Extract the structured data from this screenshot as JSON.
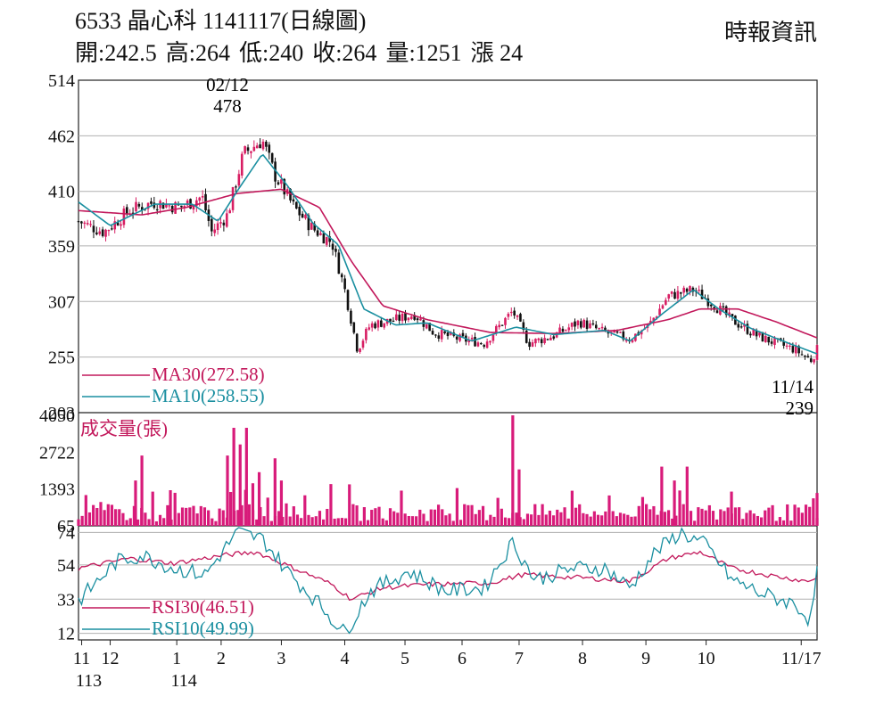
{
  "header": {
    "title": "6533 晶心科 1141117(日線圖)",
    "source": "時報資訊",
    "quote": {
      "open": "開:242.5",
      "high": "高:264",
      "low": "低:240",
      "close": "收:264",
      "volume": "量:1251",
      "change": "漲 24"
    }
  },
  "colors": {
    "up": "#d81e63",
    "down": "#111111",
    "ma30": "#c2185b",
    "ma10": "#1a8fa0",
    "volume": "#d81b7a",
    "grid": "#b0b0b0"
  },
  "chart_data": [
    {
      "type": "candlestick",
      "panel": "price",
      "y_ticks": [
        "514",
        "462",
        "410",
        "359",
        "307",
        "255",
        "203"
      ],
      "ylim": [
        203,
        514
      ],
      "annotations": [
        {
          "label_date": "02/12",
          "label_value": "478",
          "x_month_pos": 2.35,
          "value": 478
        },
        {
          "label_date": "11/14",
          "label_value": "239",
          "x_month_pos": 12.95,
          "value": 239
        }
      ],
      "legend": [
        {
          "label": "MA30(272.58)",
          "color": "#c2185b"
        },
        {
          "label": "MA10(258.55)",
          "color": "#1a8fa0"
        }
      ],
      "keypoints": [
        {
          "m": 0.0,
          "v": 382
        },
        {
          "m": 0.4,
          "v": 372
        },
        {
          "m": 0.8,
          "v": 392
        },
        {
          "m": 1.2,
          "v": 400
        },
        {
          "m": 1.6,
          "v": 395
        },
        {
          "m": 1.95,
          "v": 405
        },
        {
          "m": 2.1,
          "v": 372
        },
        {
          "m": 2.35,
          "v": 388
        },
        {
          "m": 2.6,
          "v": 445
        },
        {
          "m": 2.9,
          "v": 458
        },
        {
          "m": 3.1,
          "v": 425
        },
        {
          "m": 3.4,
          "v": 395
        },
        {
          "m": 3.7,
          "v": 375
        },
        {
          "m": 4.0,
          "v": 362
        },
        {
          "m": 4.2,
          "v": 318
        },
        {
          "m": 4.4,
          "v": 262
        },
        {
          "m": 4.6,
          "v": 285
        },
        {
          "m": 5.0,
          "v": 290
        },
        {
          "m": 5.3,
          "v": 295
        },
        {
          "m": 5.6,
          "v": 278
        },
        {
          "m": 6.0,
          "v": 272
        },
        {
          "m": 6.4,
          "v": 268
        },
        {
          "m": 6.85,
          "v": 298
        },
        {
          "m": 7.1,
          "v": 268
        },
        {
          "m": 7.5,
          "v": 275
        },
        {
          "m": 7.9,
          "v": 288
        },
        {
          "m": 8.3,
          "v": 278
        },
        {
          "m": 8.7,
          "v": 272
        },
        {
          "m": 9.0,
          "v": 285
        },
        {
          "m": 9.3,
          "v": 312
        },
        {
          "m": 9.7,
          "v": 318
        },
        {
          "m": 10.0,
          "v": 305
        },
        {
          "m": 10.3,
          "v": 290
        },
        {
          "m": 10.7,
          "v": 275
        },
        {
          "m": 11.0,
          "v": 268
        },
        {
          "m": 11.3,
          "v": 262
        },
        {
          "m": 11.55,
          "v": 252
        },
        {
          "m": 11.65,
          "v": 262
        }
      ],
      "ma30": [
        {
          "m": 0.0,
          "v": 392
        },
        {
          "m": 1.0,
          "v": 388
        },
        {
          "m": 1.7,
          "v": 395
        },
        {
          "m": 2.5,
          "v": 408
        },
        {
          "m": 3.2,
          "v": 412
        },
        {
          "m": 3.8,
          "v": 395
        },
        {
          "m": 4.3,
          "v": 345
        },
        {
          "m": 4.8,
          "v": 303
        },
        {
          "m": 5.5,
          "v": 290
        },
        {
          "m": 6.5,
          "v": 278
        },
        {
          "m": 7.5,
          "v": 277
        },
        {
          "m": 8.5,
          "v": 280
        },
        {
          "m": 9.3,
          "v": 290
        },
        {
          "m": 9.8,
          "v": 300
        },
        {
          "m": 10.4,
          "v": 300
        },
        {
          "m": 11.0,
          "v": 288
        },
        {
          "m": 11.65,
          "v": 273
        }
      ],
      "ma10": [
        {
          "m": 0.0,
          "v": 400
        },
        {
          "m": 0.5,
          "v": 378
        },
        {
          "m": 1.2,
          "v": 398
        },
        {
          "m": 1.8,
          "v": 398
        },
        {
          "m": 2.2,
          "v": 382
        },
        {
          "m": 2.5,
          "v": 410
        },
        {
          "m": 2.9,
          "v": 445
        },
        {
          "m": 3.3,
          "v": 415
        },
        {
          "m": 3.7,
          "v": 380
        },
        {
          "m": 4.1,
          "v": 360
        },
        {
          "m": 4.5,
          "v": 300
        },
        {
          "m": 5.0,
          "v": 285
        },
        {
          "m": 5.5,
          "v": 287
        },
        {
          "m": 6.2,
          "v": 270
        },
        {
          "m": 6.9,
          "v": 283
        },
        {
          "m": 7.5,
          "v": 276
        },
        {
          "m": 8.3,
          "v": 280
        },
        {
          "m": 8.7,
          "v": 270
        },
        {
          "m": 9.2,
          "v": 295
        },
        {
          "m": 9.7,
          "v": 318
        },
        {
          "m": 10.1,
          "v": 300
        },
        {
          "m": 10.6,
          "v": 282
        },
        {
          "m": 11.2,
          "v": 268
        },
        {
          "m": 11.65,
          "v": 258
        }
      ]
    },
    {
      "type": "bar",
      "panel": "volume",
      "title": "成交量(張)",
      "y_ticks": [
        "4050",
        "2722",
        "1393",
        "65"
      ],
      "ylim": [
        65,
        4050
      ],
      "spikes": [
        {
          "m": 1.0,
          "v": 2600
        },
        {
          "m": 0.9,
          "v": 1700
        },
        {
          "m": 1.45,
          "v": 1350
        },
        {
          "m": 2.35,
          "v": 2600
        },
        {
          "m": 2.45,
          "v": 3600
        },
        {
          "m": 2.55,
          "v": 3000
        },
        {
          "m": 2.65,
          "v": 3600
        },
        {
          "m": 2.75,
          "v": 1600
        },
        {
          "m": 2.85,
          "v": 2000
        },
        {
          "m": 3.1,
          "v": 2500
        },
        {
          "m": 3.2,
          "v": 1700
        },
        {
          "m": 6.85,
          "v": 4050
        },
        {
          "m": 6.95,
          "v": 2100
        },
        {
          "m": 9.2,
          "v": 2200
        },
        {
          "m": 9.4,
          "v": 1700
        },
        {
          "m": 9.6,
          "v": 2200
        },
        {
          "m": 10.3,
          "v": 1300
        },
        {
          "m": 11.65,
          "v": 1251
        }
      ],
      "base": 450
    },
    {
      "type": "line",
      "panel": "rsi",
      "y_ticks": [
        "74",
        "54",
        "33",
        "12"
      ],
      "ylim": [
        8,
        78
      ],
      "legend": [
        {
          "label": "RSI30(46.51)",
          "color": "#c2185b"
        },
        {
          "label": "RSI10(49.99)",
          "color": "#1a8fa0"
        }
      ],
      "rsi30": [
        {
          "m": 0.0,
          "v": 52
        },
        {
          "m": 0.8,
          "v": 58
        },
        {
          "m": 1.5,
          "v": 55
        },
        {
          "m": 2.3,
          "v": 60
        },
        {
          "m": 2.8,
          "v": 62
        },
        {
          "m": 3.4,
          "v": 52
        },
        {
          "m": 4.0,
          "v": 42
        },
        {
          "m": 4.3,
          "v": 33
        },
        {
          "m": 4.8,
          "v": 40
        },
        {
          "m": 5.5,
          "v": 42
        },
        {
          "m": 6.5,
          "v": 43
        },
        {
          "m": 7.0,
          "v": 48
        },
        {
          "m": 8.0,
          "v": 46
        },
        {
          "m": 8.7,
          "v": 44
        },
        {
          "m": 9.3,
          "v": 58
        },
        {
          "m": 9.8,
          "v": 62
        },
        {
          "m": 10.3,
          "v": 52
        },
        {
          "m": 11.0,
          "v": 47
        },
        {
          "m": 11.5,
          "v": 44
        },
        {
          "m": 11.65,
          "v": 46.51
        }
      ],
      "rsi10": [
        {
          "m": 0.0,
          "v": 32
        },
        {
          "m": 0.6,
          "v": 56
        },
        {
          "m": 1.0,
          "v": 60
        },
        {
          "m": 1.5,
          "v": 52
        },
        {
          "m": 2.0,
          "v": 48
        },
        {
          "m": 2.5,
          "v": 74
        },
        {
          "m": 2.9,
          "v": 70
        },
        {
          "m": 3.3,
          "v": 50
        },
        {
          "m": 3.8,
          "v": 30
        },
        {
          "m": 4.2,
          "v": 12
        },
        {
          "m": 4.6,
          "v": 38
        },
        {
          "m": 5.2,
          "v": 50
        },
        {
          "m": 5.8,
          "v": 38
        },
        {
          "m": 6.4,
          "v": 40
        },
        {
          "m": 6.85,
          "v": 68
        },
        {
          "m": 7.2,
          "v": 45
        },
        {
          "m": 7.8,
          "v": 52
        },
        {
          "m": 8.3,
          "v": 52
        },
        {
          "m": 8.7,
          "v": 40
        },
        {
          "m": 9.1,
          "v": 62
        },
        {
          "m": 9.5,
          "v": 74
        },
        {
          "m": 9.9,
          "v": 66
        },
        {
          "m": 10.3,
          "v": 45
        },
        {
          "m": 10.8,
          "v": 36
        },
        {
          "m": 11.3,
          "v": 30
        },
        {
          "m": 11.55,
          "v": 20
        },
        {
          "m": 11.65,
          "v": 49.99
        }
      ]
    }
  ],
  "x_axis": {
    "months": [
      {
        "label": "11",
        "m": 0.05
      },
      {
        "label": "12",
        "m": 0.5
      },
      {
        "label": "1",
        "m": 1.55
      },
      {
        "label": "2",
        "m": 2.25
      },
      {
        "label": "3",
        "m": 3.2
      },
      {
        "label": "4",
        "m": 4.2
      },
      {
        "label": "5",
        "m": 5.15
      },
      {
        "label": "6",
        "m": 6.05
      },
      {
        "label": "7",
        "m": 6.95
      },
      {
        "label": "8",
        "m": 7.95
      },
      {
        "label": "9",
        "m": 8.95
      },
      {
        "label": "10",
        "m": 9.9
      },
      {
        "label": "11/17",
        "m": 11.4
      }
    ],
    "years": [
      {
        "label": "113",
        "m": 0.05
      },
      {
        "label": "114",
        "m": 1.55
      }
    ],
    "m_max": 11.65
  }
}
